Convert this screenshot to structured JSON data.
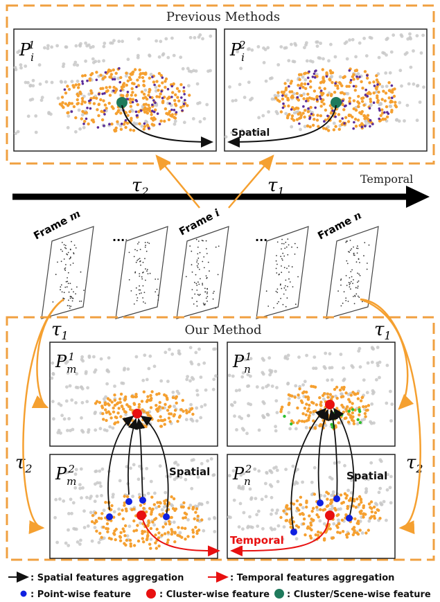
{
  "top_section": {
    "title": "Previous Methods",
    "panel_left": {
      "label_base": "P",
      "label_sub": "i",
      "label_sup": "1"
    },
    "panel_right": {
      "label_base": "P",
      "label_sub": "i",
      "label_sup": "2"
    },
    "spatial_label": "Spatial"
  },
  "timeline": {
    "label": "Temporal",
    "tau_left": {
      "base": "τ",
      "sub": "2"
    },
    "tau_right": {
      "base": "τ",
      "sub": "1"
    }
  },
  "frames": [
    {
      "label": "Frame m",
      "prefix": "Frame ",
      "var": "m"
    },
    {
      "label": "...",
      "prefix": "...",
      "var": ""
    },
    {
      "label": "Frame i",
      "prefix": "Frame ",
      "var": "i"
    },
    {
      "label": "...",
      "prefix": "...",
      "var": ""
    },
    {
      "label": "Frame n",
      "prefix": "Frame ",
      "var": "n"
    }
  ],
  "bottom_section": {
    "title": "Our Method",
    "tau_top_left": {
      "base": "τ",
      "sub": "1"
    },
    "tau_top_right": {
      "base": "τ",
      "sub": "1"
    },
    "tau_mid_left": {
      "base": "τ",
      "sub": "2"
    },
    "tau_mid_right": {
      "base": "τ",
      "sub": "2"
    },
    "panel_m1": {
      "label_base": "P",
      "label_sub": "m",
      "label_sup": "1"
    },
    "panel_n1": {
      "label_base": "P",
      "label_sub": "n",
      "label_sup": "1"
    },
    "panel_m2": {
      "label_base": "P",
      "label_sub": "m",
      "label_sup": "2"
    },
    "panel_n2": {
      "label_base": "P",
      "label_sub": "n",
      "label_sup": "2"
    },
    "spatial_label_m": "Spatial",
    "spatial_label_n": "Spatial",
    "temporal_label": "Temporal"
  },
  "legend": {
    "spatial_agg": ": Spatial features aggregation",
    "temporal_agg": ": Temporal features aggregation",
    "point_wise": ": Point-wise feature",
    "cluster_wise": ": Cluster-wise feature",
    "scene_wise": ": Cluster/Scene-wise feature"
  },
  "colors": {
    "orange": "#f5a030",
    "border_orange": "#f0a040",
    "purple": "#5b2d9a",
    "teal": "#1f7a5c",
    "red": "#e81010",
    "blue": "#1020e0",
    "black": "#111111",
    "gray_points": "#c8c8c8"
  }
}
